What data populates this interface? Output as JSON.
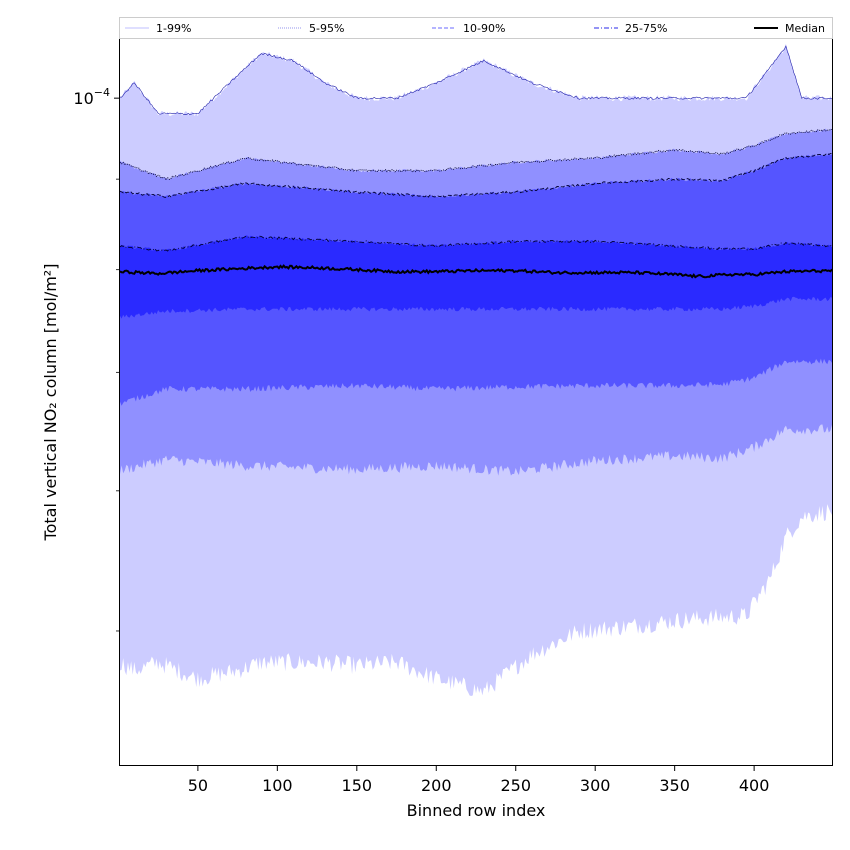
{
  "chart_data": {
    "type": "area",
    "title": "",
    "xlabel": "Binned row index",
    "ylabel": "Total vertical NO₂ column [mol/m²]",
    "y_scale": "log",
    "xlim": [
      1,
      449
    ],
    "ylim": [
      4.2e-05,
      0.000108
    ],
    "x_ticks": [
      50,
      100,
      150,
      200,
      250,
      300,
      350,
      400
    ],
    "y_major_tick": {
      "value": 0.0001,
      "label_base": "10",
      "label_exp": "−4"
    },
    "grid": false,
    "legend": {
      "placement": "top",
      "entries": [
        {
          "label": "1-99%",
          "color": "#ccccff",
          "style": "solid"
        },
        {
          "label": "5-95%",
          "color": "#aaaaf0",
          "style": "dotted"
        },
        {
          "label": "10-90%",
          "color": "#8888ff",
          "style": "dashed"
        },
        {
          "label": "25-75%",
          "color": "#5555ee",
          "style": "dashdot"
        },
        {
          "label": "Median",
          "color": "#000000",
          "style": "solid"
        }
      ]
    },
    "bands": [
      {
        "name": "1-99%",
        "color": "#ccccff",
        "x": [
          1,
          10,
          25,
          50,
          75,
          90,
          110,
          130,
          150,
          175,
          200,
          230,
          260,
          290,
          320,
          360,
          395,
          410,
          420,
          430,
          449
        ],
        "upper": [
          0.0001,
          0.000102,
          9.8e-05,
          9.8e-05,
          0.000103,
          0.000106,
          0.000105,
          0.000102,
          0.0001,
          0.0001,
          0.000102,
          0.000105,
          0.000102,
          0.0001,
          0.0001,
          0.0001,
          0.0001,
          0.000104,
          0.000107,
          0.0001,
          0.0001
        ],
        "lower": [
          4.8e-05,
          4.75e-05,
          4.8e-05,
          4.7e-05,
          4.75e-05,
          4.8e-05,
          4.8e-05,
          4.8e-05,
          4.78e-05,
          4.8e-05,
          4.7e-05,
          4.62e-05,
          4.85e-05,
          5e-05,
          5.03e-05,
          5.08e-05,
          5.1e-05,
          5.35e-05,
          5.65e-05,
          5.8e-05,
          5.85e-05
        ]
      },
      {
        "name": "5-95%",
        "color": "#9090ff",
        "x": [
          1,
          30,
          80,
          150,
          200,
          250,
          300,
          350,
          380,
          400,
          420,
          449
        ],
        "upper": [
          9.2e-05,
          9e-05,
          9.25e-05,
          9.1e-05,
          9.1e-05,
          9.2e-05,
          9.25e-05,
          9.35e-05,
          9.3e-05,
          9.4e-05,
          9.55e-05,
          9.6e-05
        ],
        "lower": [
          6.16e-05,
          6.25e-05,
          6.2e-05,
          6.17e-05,
          6.2e-05,
          6.15e-05,
          6.24e-05,
          6.28e-05,
          6.26e-05,
          6.35e-05,
          6.5e-05,
          6.5e-05
        ]
      },
      {
        "name": "10-90%",
        "color": "#5555ff",
        "x": [
          1,
          30,
          80,
          150,
          200,
          250,
          300,
          350,
          380,
          400,
          420,
          449
        ],
        "upper": [
          8.85e-05,
          8.8e-05,
          8.95e-05,
          8.85e-05,
          8.8e-05,
          8.85e-05,
          8.95e-05,
          9e-05,
          8.98e-05,
          9.1e-05,
          9.25e-05,
          9.3e-05
        ],
        "lower": [
          6.72e-05,
          6.85e-05,
          6.85e-05,
          6.88e-05,
          6.85e-05,
          6.87e-05,
          6.88e-05,
          6.88e-05,
          6.89e-05,
          6.95e-05,
          7.1e-05,
          7.1e-05
        ]
      },
      {
        "name": "25-75%",
        "color": "#2a2aff",
        "x": [
          1,
          30,
          80,
          150,
          200,
          250,
          300,
          350,
          380,
          400,
          420,
          449
        ],
        "upper": [
          8.25e-05,
          8.2e-05,
          8.35e-05,
          8.3e-05,
          8.25e-05,
          8.3e-05,
          8.3e-05,
          8.25e-05,
          8.22e-05,
          8.22e-05,
          8.28e-05,
          8.25e-05
        ],
        "lower": [
          7.52e-05,
          7.58e-05,
          7.6e-05,
          7.6e-05,
          7.6e-05,
          7.6e-05,
          7.6e-05,
          7.6e-05,
          7.6e-05,
          7.63e-05,
          7.7e-05,
          7.7e-05
        ]
      }
    ],
    "series": [
      {
        "name": "Median",
        "color": "#000000",
        "x": [
          1,
          25,
          50,
          75,
          100,
          125,
          150,
          175,
          200,
          225,
          250,
          275,
          300,
          325,
          350,
          365,
          385,
          400,
          420,
          449
        ],
        "values": [
          7.98e-05,
          7.96e-05,
          7.99e-05,
          8.01e-05,
          8.03e-05,
          8.02e-05,
          8e-05,
          7.98e-05,
          7.98e-05,
          7.99e-05,
          7.99e-05,
          7.97e-05,
          7.97e-05,
          7.97e-05,
          7.95e-05,
          7.93e-05,
          7.95e-05,
          7.95e-05,
          7.98e-05,
          7.99e-05
        ]
      }
    ]
  }
}
